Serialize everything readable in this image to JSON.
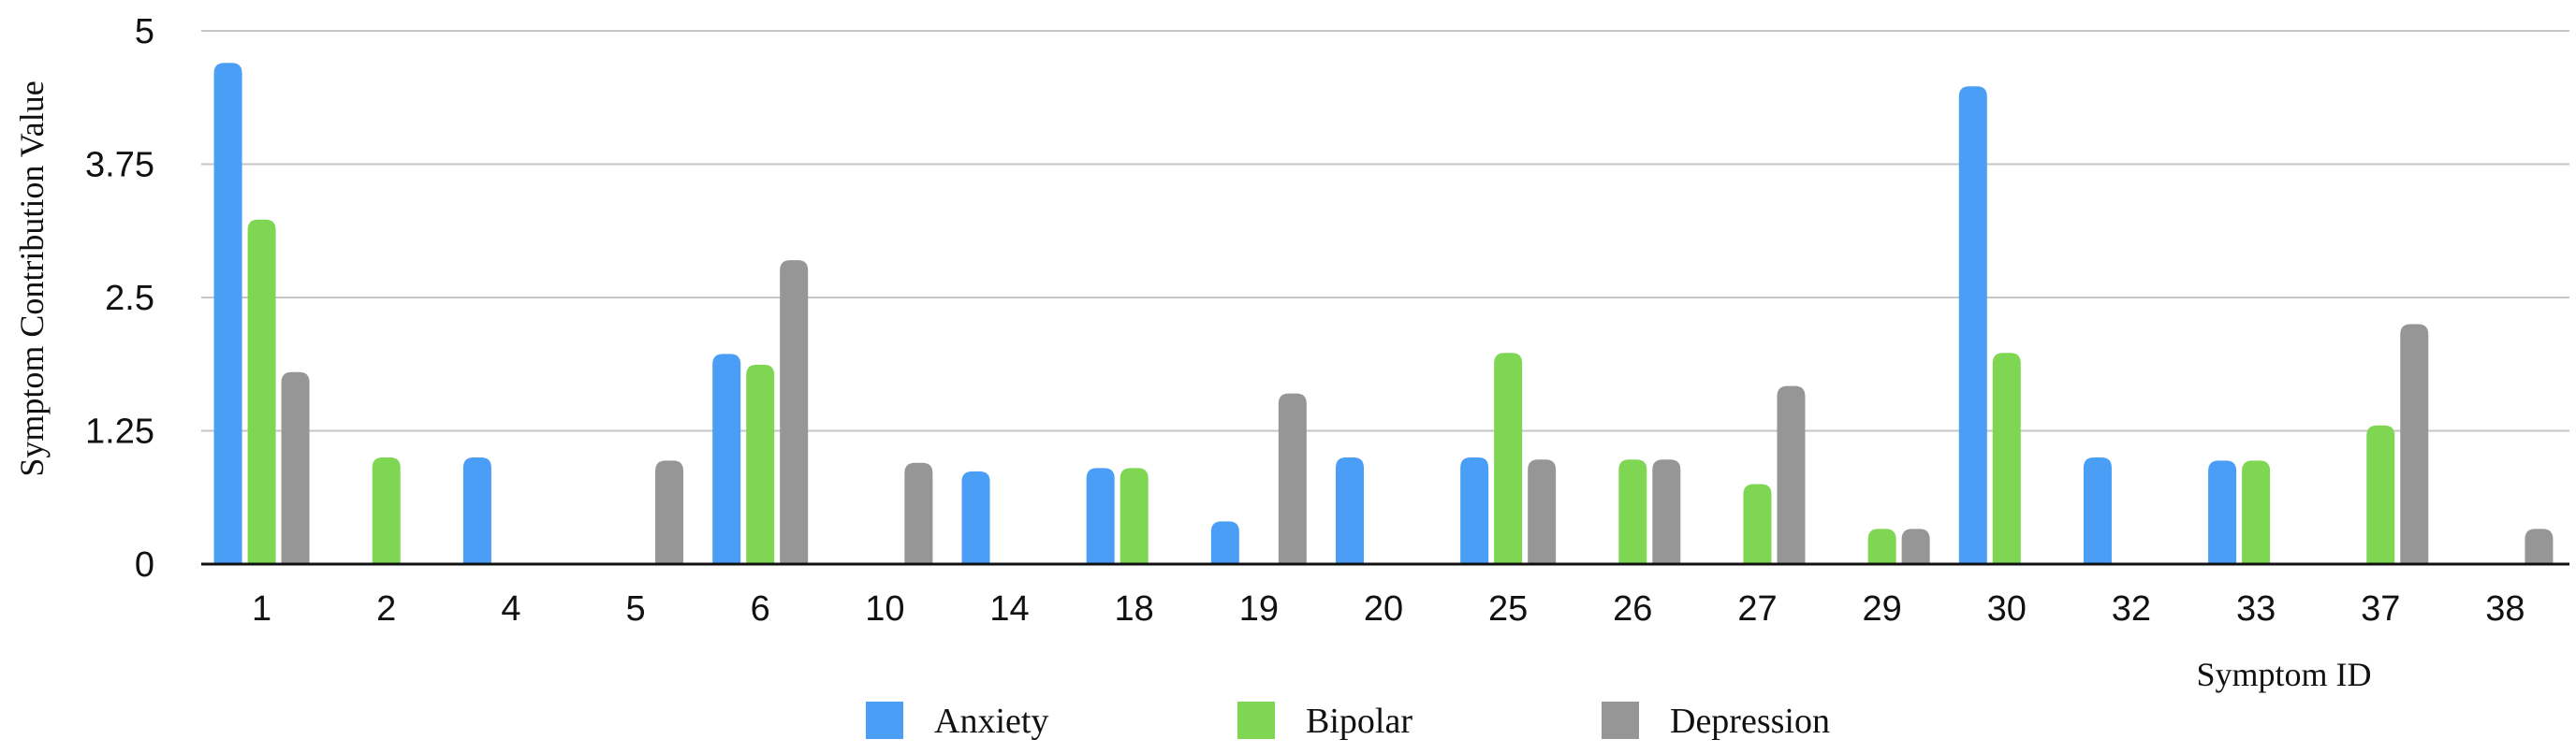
{
  "chart_data": {
    "type": "bar",
    "title": "",
    "xlabel": "Symptom ID",
    "ylabel": "Symptom Contribution Value",
    "ylim": [
      0,
      5
    ],
    "yticks": [
      "0",
      "1.25",
      "2.5",
      "3.75",
      "5"
    ],
    "grid": true,
    "legend_position": "bottom",
    "categories": [
      "1",
      "2",
      "4",
      "5",
      "6",
      "10",
      "14",
      "18",
      "19",
      "20",
      "25",
      "26",
      "27",
      "29",
      "30",
      "32",
      "33",
      "37",
      "38"
    ],
    "series": [
      {
        "name": "Anxiety",
        "color": "#4a9ef5",
        "values": [
          4.7,
          0,
          1.0,
          0,
          1.97,
          0,
          0.87,
          0.9,
          0.4,
          1.0,
          1.0,
          0,
          0,
          0,
          4.48,
          1.0,
          0.97,
          0,
          0
        ]
      },
      {
        "name": "Bipolar",
        "color": "#7fd653",
        "values": [
          3.23,
          1.0,
          0,
          0,
          1.87,
          0,
          0,
          0.9,
          0,
          0,
          1.98,
          0.98,
          0.75,
          0.33,
          1.98,
          0,
          0.97,
          1.3,
          0
        ]
      },
      {
        "name": "Depression",
        "color": "#969696",
        "values": [
          1.8,
          0,
          0,
          0.97,
          2.85,
          0.95,
          0,
          0,
          1.6,
          0,
          0.98,
          0.98,
          1.67,
          0.33,
          0,
          0,
          0,
          2.25,
          0.33
        ]
      }
    ]
  }
}
